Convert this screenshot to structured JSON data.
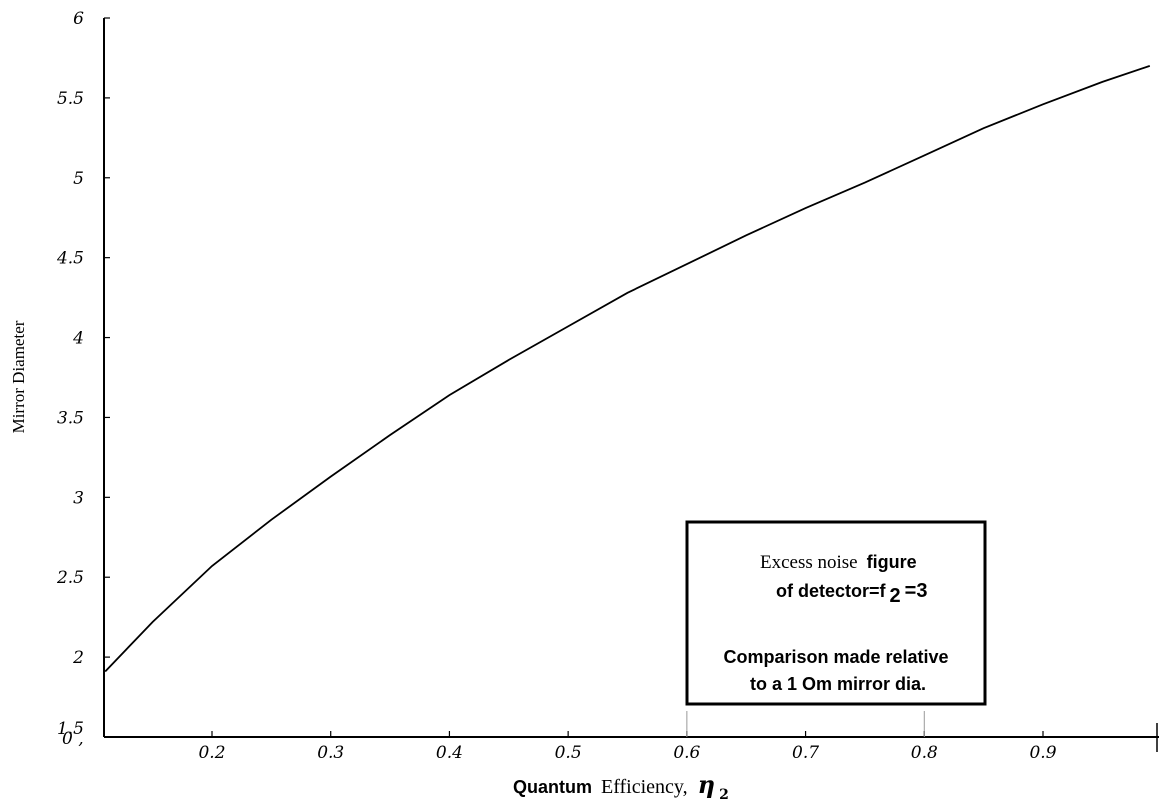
{
  "chart_data": {
    "type": "line",
    "title": "",
    "xlabel": {
      "parts": [
        "Quantum",
        "Efficiency,",
        "η",
        "2"
      ]
    },
    "ylabel": "Mirror Diameter",
    "xlim": [
      0.1,
      1.0
    ],
    "ylim": [
      1.5,
      6
    ],
    "x_tick_labels": [
      "0 ,",
      "0.2",
      "0.3",
      "0.4",
      "0.5",
      "0.6",
      "0.7",
      "0.8",
      "0.9"
    ],
    "x_tick_values": [
      0.1,
      0.2,
      0.3,
      0.4,
      0.5,
      0.6,
      0.7,
      0.8,
      0.9
    ],
    "y_tick_labels": [
      "1.5",
      "2",
      "2.5",
      "3",
      "3.5",
      "4",
      "4.5",
      "5",
      "5.5",
      "6"
    ],
    "y_tick_values": [
      1.5,
      2,
      2.5,
      3,
      3.5,
      4,
      4.5,
      5,
      5.5,
      6
    ],
    "grid": false,
    "series": [
      {
        "x": [
          0.11,
          0.15,
          0.2,
          0.25,
          0.3,
          0.35,
          0.4,
          0.45,
          0.5,
          0.55,
          0.6,
          0.65,
          0.7,
          0.75,
          0.8,
          0.85,
          0.9,
          0.95,
          0.99
        ],
        "y": [
          1.91,
          2.22,
          2.57,
          2.86,
          3.13,
          3.39,
          3.64,
          3.86,
          4.07,
          4.28,
          4.46,
          4.64,
          4.81,
          4.97,
          5.14,
          5.31,
          5.46,
          5.6,
          5.7
        ]
      }
    ],
    "annotation": {
      "line1_regular": "Excess noise",
      "line1_bold": "figure",
      "line2": "of detector=f",
      "line2_sub": "2",
      "line2_end": "=3",
      "line3": "Comparison made relative",
      "line4": "to a 1 Om mirror dia."
    }
  }
}
